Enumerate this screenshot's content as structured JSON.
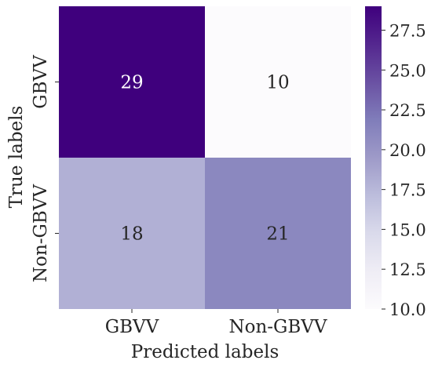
{
  "chart_data": {
    "type": "heatmap",
    "xlabel": "Predicted labels",
    "ylabel": "True labels",
    "x_categories": [
      "GBVV",
      "Non-GBVV"
    ],
    "y_categories": [
      "GBVV",
      "Non-GBVV"
    ],
    "values": [
      [
        29,
        10
      ],
      [
        18,
        21
      ]
    ],
    "colormap": "Purples",
    "color_range": [
      10,
      29
    ],
    "colorbar_ticks": [
      "10.0",
      "12.5",
      "15.0",
      "17.5",
      "20.0",
      "22.5",
      "25.0",
      "27.5"
    ],
    "colors": {
      "low": "#fcfbfd",
      "high": "#3f007d",
      "text_light": "#ffffff",
      "text_dark": "#262626"
    }
  }
}
